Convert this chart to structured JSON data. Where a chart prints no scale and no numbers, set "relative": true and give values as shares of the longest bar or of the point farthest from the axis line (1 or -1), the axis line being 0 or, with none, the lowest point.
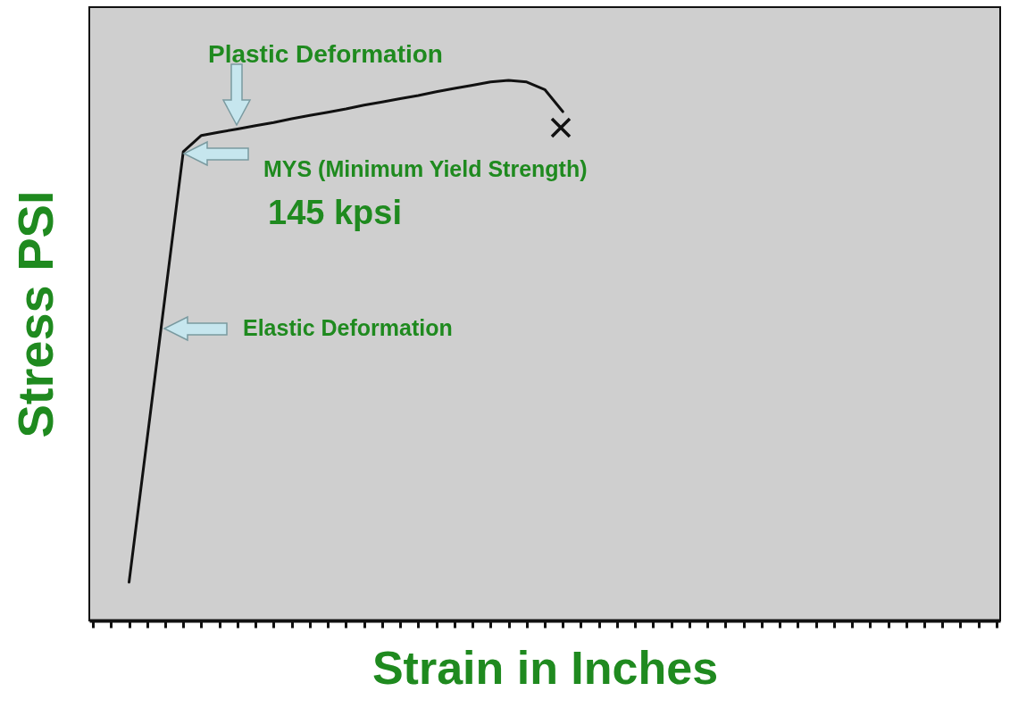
{
  "chart_data": {
    "type": "line",
    "relative": true,
    "xlabel": "Strain in Inches",
    "ylabel": "Stress PSI",
    "categories": [
      null,
      null,
      null,
      null,
      null,
      null,
      null,
      null,
      null,
      null,
      null,
      null,
      null,
      null,
      null,
      null,
      null,
      null,
      null,
      null,
      null,
      null,
      null,
      null,
      null,
      null,
      null,
      null,
      null,
      null,
      null,
      null,
      null,
      null,
      null,
      null,
      null,
      null,
      null,
      null,
      null,
      null,
      null,
      null,
      null,
      null,
      null,
      null,
      null,
      null,
      null
    ],
    "series": [
      {
        "color": "#111111",
        "values": [
          null,
          null,
          0.071,
          0.336,
          0.602,
          0.868,
          0.898,
          0.904,
          0.91,
          0.916,
          0.922,
          0.929,
          0.935,
          0.941,
          0.947,
          0.954,
          0.96,
          0.966,
          0.972,
          0.979,
          0.985,
          0.991,
          0.997,
          1.0,
          0.997,
          0.983,
          0.942,
          null,
          null,
          null,
          null,
          null,
          null,
          null,
          null,
          null,
          null,
          null,
          null,
          null,
          null,
          null,
          null,
          null,
          null,
          null,
          null,
          null,
          null,
          null,
          null
        ]
      }
    ],
    "annotations": [
      "Plastic Deformation",
      "MYS (Minimum Yield Strength)",
      "145 kpsi",
      "Elastic Deformation"
    ],
    "grid": false
  }
}
